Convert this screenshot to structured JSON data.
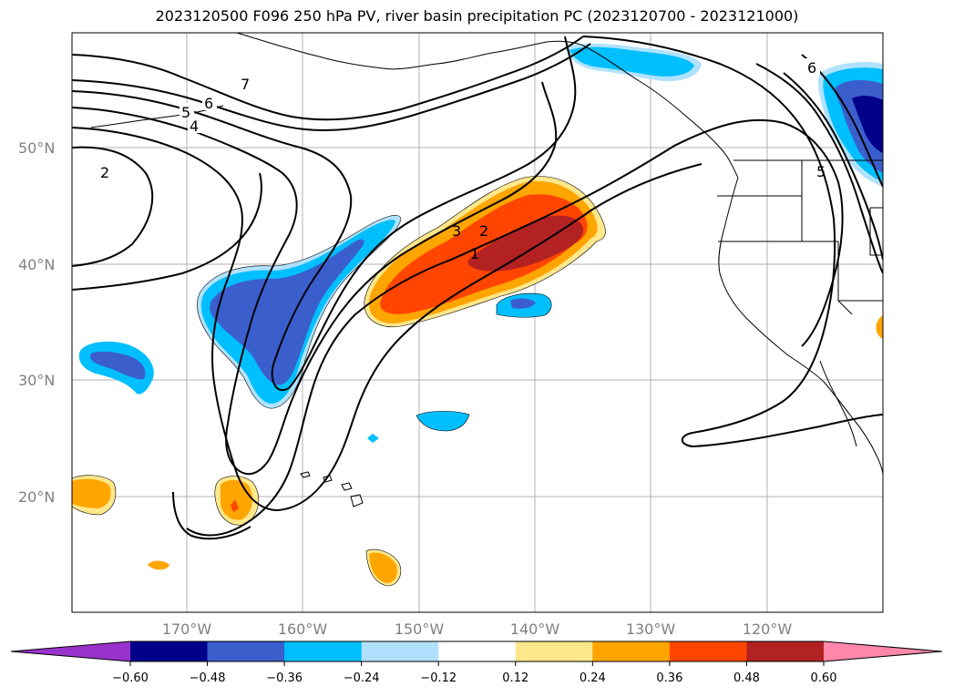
{
  "title": "2023120500 F096 250 hPa PV, river basin precipitation PC (2023120700 - 2023121000)",
  "lat_labels": [
    "50°N",
    "40°N",
    "30°N",
    "20°N"
  ],
  "lon_labels": [
    "170°W",
    "160°W",
    "150°W",
    "140°W",
    "130°W",
    "120°W"
  ],
  "contour_labels": [
    "7",
    "6",
    "5",
    "4",
    "2",
    "3",
    "2",
    "1",
    "6",
    "5"
  ],
  "colorbar": {
    "colors": [
      "#9932cc",
      "#00008b",
      "#3a5fcd",
      "#00bfff",
      "#b0e2ff",
      "#ffffff",
      "#ffe78b",
      "#ffa500",
      "#ff4500",
      "#b22222",
      "#ff88aa"
    ],
    "tick_labels": [
      "−0.60",
      "−0.48",
      "−0.36",
      "−0.24",
      "−0.12",
      "0.12",
      "0.24",
      "0.36",
      "0.48",
      "0.60"
    ]
  },
  "colors": {
    "grid": "#b0b0b0",
    "coast": "#000000",
    "orange": "#ffa500",
    "red_orange": "#ff4500",
    "dark_red": "#b22222",
    "light_yellow": "#ffe78b",
    "deep_sky": "#00bfff",
    "royal_blue": "#3a5fcd",
    "navy": "#00008b",
    "light_blue": "#b0e2ff"
  }
}
